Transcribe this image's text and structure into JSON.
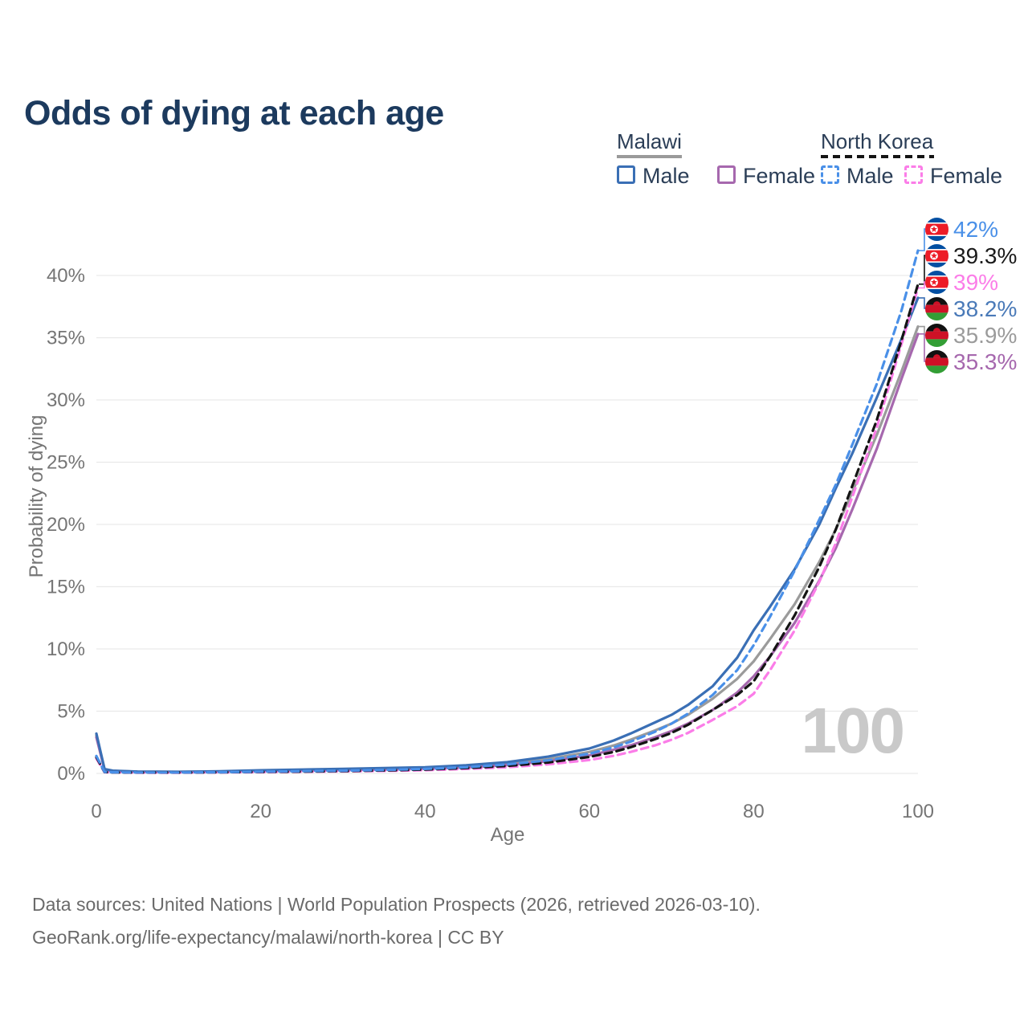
{
  "title": "Odds of dying at each age",
  "watermark_age": "100",
  "footer": {
    "line1": "Data sources: United Nations | World Population Prospects (2026, retrieved 2026-03-10).",
    "line2": "GeoRank.org/life-expectancy/malawi/north-korea | CC BY"
  },
  "legend": {
    "groups": [
      {
        "country": "Malawi",
        "line_style": "solid",
        "underline_color": "#9a9a9a",
        "items": [
          {
            "label": "Male",
            "color": "#3a6fb5",
            "dashed": false
          },
          {
            "label": "Female",
            "color": "#a668ae",
            "dashed": false
          }
        ]
      },
      {
        "country": "North Korea",
        "line_style": "dashed",
        "underline_color": "#141414",
        "items": [
          {
            "label": "Male",
            "color": "#4a90e8",
            "dashed": true
          },
          {
            "label": "Female",
            "color": "#fb7de8",
            "dashed": true
          }
        ]
      }
    ]
  },
  "chart_data": {
    "type": "line",
    "title": "Odds of dying at each age",
    "xlabel": "Age",
    "ylabel": "Probability of dying",
    "xlim": [
      0,
      100
    ],
    "ylim": [
      0,
      43.5
    ],
    "x_ticks": [
      0,
      20,
      40,
      60,
      80,
      100
    ],
    "y_ticks": [
      0,
      5,
      10,
      15,
      20,
      25,
      30,
      35,
      40
    ],
    "y_tick_suffix": "%",
    "grid": true,
    "legend_position": "top-right",
    "series": [
      {
        "name": "North Korea — Male",
        "country": "North Korea",
        "sex": "male",
        "color": "#4a90e8",
        "label_color": "#4a90e8",
        "dashed": true,
        "flag": "north-korea",
        "end_label": "42%",
        "end_value": 42.0,
        "points": [
          [
            0,
            1.4
          ],
          [
            1,
            0.12
          ],
          [
            2,
            0.09
          ],
          [
            5,
            0.08
          ],
          [
            10,
            0.08
          ],
          [
            15,
            0.1
          ],
          [
            20,
            0.14
          ],
          [
            25,
            0.18
          ],
          [
            30,
            0.22
          ],
          [
            35,
            0.28
          ],
          [
            40,
            0.36
          ],
          [
            45,
            0.5
          ],
          [
            50,
            0.72
          ],
          [
            55,
            1.05
          ],
          [
            60,
            1.58
          ],
          [
            63,
            2.1
          ],
          [
            65,
            2.55
          ],
          [
            68,
            3.35
          ],
          [
            70,
            4.0
          ],
          [
            72,
            4.8
          ],
          [
            75,
            6.3
          ],
          [
            78,
            8.3
          ],
          [
            80,
            10.3
          ],
          [
            82,
            12.6
          ],
          [
            85,
            16.3
          ],
          [
            88,
            20.4
          ],
          [
            90,
            23.2
          ],
          [
            92,
            26.4
          ],
          [
            95,
            31.3
          ],
          [
            98,
            37.2
          ],
          [
            100,
            42.0
          ]
        ]
      },
      {
        "name": "North Korea — Both sexes",
        "country": "North Korea",
        "sex": "both",
        "color": "#141414",
        "label_color": "#1a1a1a",
        "dashed": true,
        "flag": "north-korea",
        "end_label": "39.3%",
        "end_value": 39.3,
        "points": [
          [
            0,
            1.3
          ],
          [
            1,
            0.11
          ],
          [
            2,
            0.08
          ],
          [
            5,
            0.07
          ],
          [
            10,
            0.07
          ],
          [
            15,
            0.09
          ],
          [
            20,
            0.12
          ],
          [
            25,
            0.15
          ],
          [
            30,
            0.19
          ],
          [
            35,
            0.24
          ],
          [
            40,
            0.31
          ],
          [
            45,
            0.43
          ],
          [
            50,
            0.6
          ],
          [
            55,
            0.88
          ],
          [
            60,
            1.32
          ],
          [
            63,
            1.73
          ],
          [
            65,
            2.1
          ],
          [
            68,
            2.75
          ],
          [
            70,
            3.25
          ],
          [
            72,
            3.9
          ],
          [
            75,
            5.1
          ],
          [
            78,
            6.3
          ],
          [
            80,
            7.4
          ],
          [
            82,
            9.4
          ],
          [
            85,
            12.7
          ],
          [
            88,
            16.6
          ],
          [
            90,
            19.6
          ],
          [
            92,
            23.1
          ],
          [
            95,
            28.4
          ],
          [
            98,
            34.8
          ],
          [
            100,
            39.3
          ]
        ]
      },
      {
        "name": "North Korea — Female",
        "country": "North Korea",
        "sex": "female",
        "color": "#fb7de8",
        "label_color": "#fb7de8",
        "dashed": true,
        "flag": "north-korea",
        "end_label": "39%",
        "end_value": 39.0,
        "points": [
          [
            0,
            1.2
          ],
          [
            1,
            0.1
          ],
          [
            2,
            0.07
          ],
          [
            5,
            0.06
          ],
          [
            10,
            0.06
          ],
          [
            15,
            0.08
          ],
          [
            20,
            0.1
          ],
          [
            25,
            0.13
          ],
          [
            30,
            0.16
          ],
          [
            35,
            0.2
          ],
          [
            40,
            0.26
          ],
          [
            45,
            0.36
          ],
          [
            50,
            0.5
          ],
          [
            55,
            0.73
          ],
          [
            60,
            1.08
          ],
          [
            63,
            1.42
          ],
          [
            65,
            1.72
          ],
          [
            68,
            2.25
          ],
          [
            70,
            2.7
          ],
          [
            72,
            3.25
          ],
          [
            75,
            4.3
          ],
          [
            78,
            5.4
          ],
          [
            80,
            6.4
          ],
          [
            82,
            8.3
          ],
          [
            85,
            11.5
          ],
          [
            88,
            15.4
          ],
          [
            90,
            18.5
          ],
          [
            92,
            22.2
          ],
          [
            95,
            27.8
          ],
          [
            98,
            34.5
          ],
          [
            100,
            39.0
          ]
        ]
      },
      {
        "name": "Malawi — Male",
        "country": "Malawi",
        "sex": "male",
        "color": "#3a6fb5",
        "label_color": "#4a7ab8",
        "dashed": false,
        "flag": "malawi",
        "end_label": "38.2%",
        "end_value": 38.2,
        "points": [
          [
            0,
            3.2
          ],
          [
            1,
            0.35
          ],
          [
            2,
            0.22
          ],
          [
            5,
            0.15
          ],
          [
            10,
            0.13
          ],
          [
            15,
            0.17
          ],
          [
            20,
            0.25
          ],
          [
            25,
            0.31
          ],
          [
            30,
            0.37
          ],
          [
            35,
            0.43
          ],
          [
            40,
            0.5
          ],
          [
            45,
            0.65
          ],
          [
            50,
            0.9
          ],
          [
            55,
            1.35
          ],
          [
            60,
            2.0
          ],
          [
            63,
            2.65
          ],
          [
            65,
            3.2
          ],
          [
            68,
            4.1
          ],
          [
            70,
            4.7
          ],
          [
            72,
            5.5
          ],
          [
            75,
            7.0
          ],
          [
            78,
            9.3
          ],
          [
            80,
            11.5
          ],
          [
            82,
            13.4
          ],
          [
            85,
            16.4
          ],
          [
            88,
            20.0
          ],
          [
            90,
            22.9
          ],
          [
            92,
            25.7
          ],
          [
            95,
            30.2
          ],
          [
            98,
            34.9
          ],
          [
            100,
            38.2
          ]
        ]
      },
      {
        "name": "Malawi — Both sexes",
        "country": "Malawi",
        "sex": "both",
        "color": "#9b9b9b",
        "label_color": "#9b9b9b",
        "dashed": false,
        "flag": "malawi",
        "end_label": "35.9%",
        "end_value": 35.9,
        "points": [
          [
            0,
            3.05
          ],
          [
            1,
            0.32
          ],
          [
            2,
            0.2
          ],
          [
            5,
            0.14
          ],
          [
            10,
            0.12
          ],
          [
            15,
            0.15
          ],
          [
            20,
            0.21
          ],
          [
            25,
            0.26
          ],
          [
            30,
            0.32
          ],
          [
            35,
            0.37
          ],
          [
            40,
            0.44
          ],
          [
            45,
            0.56
          ],
          [
            50,
            0.78
          ],
          [
            55,
            1.15
          ],
          [
            60,
            1.72
          ],
          [
            63,
            2.25
          ],
          [
            65,
            2.7
          ],
          [
            68,
            3.45
          ],
          [
            70,
            4.0
          ],
          [
            72,
            4.7
          ],
          [
            75,
            6.0
          ],
          [
            78,
            7.6
          ],
          [
            80,
            9.0
          ],
          [
            82,
            10.8
          ],
          [
            85,
            13.6
          ],
          [
            88,
            17.0
          ],
          [
            90,
            19.6
          ],
          [
            92,
            22.6
          ],
          [
            95,
            27.2
          ],
          [
            98,
            32.3
          ],
          [
            100,
            35.9
          ]
        ]
      },
      {
        "name": "Malawi — Female",
        "country": "Malawi",
        "sex": "female",
        "color": "#a668ae",
        "label_color": "#a668ae",
        "dashed": false,
        "flag": "malawi",
        "end_label": "35.3%",
        "end_value": 35.3,
        "points": [
          [
            0,
            2.9
          ],
          [
            1,
            0.3
          ],
          [
            2,
            0.19
          ],
          [
            5,
            0.13
          ],
          [
            10,
            0.11
          ],
          [
            15,
            0.13
          ],
          [
            20,
            0.18
          ],
          [
            25,
            0.22
          ],
          [
            30,
            0.27
          ],
          [
            35,
            0.31
          ],
          [
            40,
            0.38
          ],
          [
            45,
            0.48
          ],
          [
            50,
            0.67
          ],
          [
            55,
            0.98
          ],
          [
            60,
            1.45
          ],
          [
            63,
            1.9
          ],
          [
            65,
            2.25
          ],
          [
            68,
            2.9
          ],
          [
            70,
            3.4
          ],
          [
            72,
            4.0
          ],
          [
            75,
            5.1
          ],
          [
            78,
            6.5
          ],
          [
            80,
            7.8
          ],
          [
            82,
            9.4
          ],
          [
            85,
            12.1
          ],
          [
            88,
            15.5
          ],
          [
            90,
            18.1
          ],
          [
            92,
            21.2
          ],
          [
            95,
            26.1
          ],
          [
            98,
            31.7
          ],
          [
            100,
            35.3
          ]
        ]
      }
    ]
  }
}
